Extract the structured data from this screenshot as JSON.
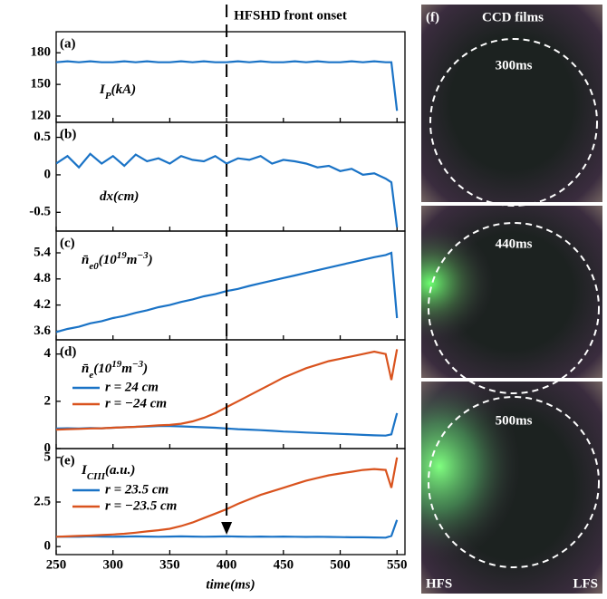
{
  "annotation": {
    "text": "HFSHD front onset",
    "x": 400
  },
  "chart_data": [
    {
      "type": "line",
      "panel": "(a)",
      "label": [
        {
          "text": "I"
        },
        {
          "text": "P",
          "sub": true
        },
        {
          "text": "(kA)"
        }
      ],
      "x": [
        250,
        260,
        270,
        280,
        290,
        300,
        310,
        320,
        330,
        340,
        350,
        360,
        370,
        380,
        390,
        400,
        410,
        420,
        430,
        440,
        450,
        460,
        470,
        480,
        490,
        500,
        510,
        520,
        530,
        540,
        545,
        550
      ],
      "values": [
        171,
        172,
        171,
        172,
        171,
        171,
        172,
        171,
        172,
        171,
        171,
        172,
        171,
        172,
        171,
        171,
        172,
        171,
        172,
        171,
        171,
        172,
        171,
        172,
        171,
        171,
        172,
        171,
        172,
        171,
        171,
        125
      ],
      "color": "#1a73c6",
      "xlim": [
        250,
        557
      ],
      "xticks": [
        250,
        300,
        350,
        400,
        450,
        500,
        550
      ],
      "ylim": [
        114,
        200
      ],
      "yticks": [
        120,
        150,
        180
      ]
    },
    {
      "type": "line",
      "panel": "(b)",
      "label": [
        {
          "text": "dx(cm)"
        }
      ],
      "x": [
        250,
        260,
        270,
        280,
        290,
        300,
        310,
        320,
        330,
        340,
        350,
        360,
        370,
        380,
        390,
        400,
        410,
        420,
        430,
        440,
        450,
        460,
        470,
        480,
        490,
        500,
        510,
        520,
        530,
        540,
        545,
        550
      ],
      "values": [
        0.15,
        0.25,
        0.1,
        0.28,
        0.15,
        0.25,
        0.12,
        0.27,
        0.18,
        0.22,
        0.15,
        0.25,
        0.2,
        0.18,
        0.25,
        0.15,
        0.22,
        0.2,
        0.25,
        0.15,
        0.2,
        0.18,
        0.15,
        0.1,
        0.12,
        0.05,
        0.08,
        0,
        0.02,
        -0.05,
        -0.1,
        -0.7
      ],
      "color": "#1a73c6",
      "xlim": [
        250,
        557
      ],
      "xticks": [
        250,
        300,
        350,
        400,
        450,
        500,
        550
      ],
      "ylim": [
        -0.75,
        0.7
      ],
      "yticks": [
        -0.5,
        0,
        0.5
      ]
    },
    {
      "type": "line",
      "panel": "(c)",
      "label": [
        {
          "text": "n̄"
        },
        {
          "text": "e0",
          "sub": true
        },
        {
          "text": "(10"
        },
        {
          "text": "19",
          "sup": true
        },
        {
          "text": "m"
        },
        {
          "text": "−3",
          "sup": true
        },
        {
          "text": ")"
        }
      ],
      "x": [
        250,
        260,
        270,
        280,
        290,
        300,
        310,
        320,
        330,
        340,
        350,
        360,
        370,
        380,
        390,
        400,
        410,
        420,
        430,
        440,
        450,
        460,
        470,
        480,
        490,
        500,
        510,
        520,
        530,
        540,
        545,
        550
      ],
      "values": [
        3.58,
        3.65,
        3.7,
        3.78,
        3.83,
        3.9,
        3.95,
        4.02,
        4.08,
        4.15,
        4.2,
        4.27,
        4.33,
        4.4,
        4.45,
        4.52,
        4.57,
        4.64,
        4.7,
        4.76,
        4.82,
        4.88,
        4.94,
        5.0,
        5.06,
        5.12,
        5.18,
        5.24,
        5.3,
        5.35,
        5.4,
        3.9
      ],
      "color": "#1a73c6",
      "xlim": [
        250,
        557
      ],
      "xticks": [
        250,
        300,
        350,
        400,
        450,
        500,
        550
      ],
      "ylim": [
        3.4,
        5.9
      ],
      "yticks": [
        3.6,
        4.2,
        4.8,
        5.4
      ]
    },
    {
      "type": "line",
      "panel": "(d)",
      "label": [
        {
          "text": "n̄"
        },
        {
          "text": "e",
          "sub": true
        },
        {
          "text": "(10"
        },
        {
          "text": "19",
          "sup": true
        },
        {
          "text": "m"
        },
        {
          "text": "−3",
          "sup": true
        },
        {
          "text": ")"
        }
      ],
      "x": [
        250,
        260,
        270,
        280,
        290,
        300,
        310,
        320,
        330,
        340,
        350,
        360,
        370,
        380,
        390,
        400,
        410,
        420,
        430,
        440,
        450,
        460,
        470,
        480,
        490,
        500,
        510,
        520,
        530,
        540,
        545,
        550
      ],
      "series": [
        {
          "name": "r = 24 cm",
          "color": "#1a73c6",
          "values": [
            0.85,
            0.86,
            0.85,
            0.87,
            0.86,
            0.88,
            0.9,
            0.92,
            0.93,
            0.95,
            0.95,
            0.94,
            0.92,
            0.9,
            0.88,
            0.85,
            0.82,
            0.8,
            0.78,
            0.75,
            0.72,
            0.7,
            0.68,
            0.66,
            0.64,
            0.62,
            0.6,
            0.58,
            0.56,
            0.55,
            0.6,
            1.5
          ]
        },
        {
          "name": "r = −24 cm",
          "color": "#d9531e",
          "values": [
            0.8,
            0.82,
            0.83,
            0.85,
            0.86,
            0.88,
            0.9,
            0.92,
            0.95,
            0.98,
            1.0,
            1.05,
            1.15,
            1.3,
            1.5,
            1.75,
            2.0,
            2.25,
            2.5,
            2.75,
            3.0,
            3.2,
            3.4,
            3.55,
            3.7,
            3.8,
            3.9,
            4.0,
            4.1,
            4.0,
            2.9,
            4.2
          ]
        }
      ],
      "xlim": [
        250,
        557
      ],
      "xticks": [
        250,
        300,
        350,
        400,
        450,
        500,
        550
      ],
      "ylim": [
        0,
        4.6
      ],
      "yticks": [
        0,
        2,
        4
      ]
    },
    {
      "type": "line",
      "panel": "(e)",
      "label": [
        {
          "text": "I"
        },
        {
          "text": "CIII",
          "sub": true
        },
        {
          "text": "(a.u.)"
        }
      ],
      "x": [
        250,
        260,
        270,
        280,
        290,
        300,
        310,
        320,
        330,
        340,
        350,
        360,
        370,
        380,
        390,
        400,
        410,
        420,
        430,
        440,
        450,
        460,
        470,
        480,
        490,
        500,
        510,
        520,
        530,
        540,
        545,
        550
      ],
      "series": [
        {
          "name": "r = 23.5 cm",
          "color": "#1a73c6",
          "values": [
            0.55,
            0.56,
            0.55,
            0.57,
            0.56,
            0.55,
            0.56,
            0.57,
            0.56,
            0.55,
            0.56,
            0.57,
            0.56,
            0.55,
            0.56,
            0.57,
            0.56,
            0.55,
            0.56,
            0.55,
            0.56,
            0.55,
            0.54,
            0.55,
            0.54,
            0.53,
            0.52,
            0.52,
            0.51,
            0.5,
            0.6,
            1.5
          ]
        },
        {
          "name": "r = −23.5 cm",
          "color": "#d9531e",
          "values": [
            0.55,
            0.57,
            0.6,
            0.62,
            0.65,
            0.68,
            0.72,
            0.78,
            0.85,
            0.92,
            1.0,
            1.15,
            1.35,
            1.6,
            1.85,
            2.1,
            2.4,
            2.65,
            2.9,
            3.1,
            3.3,
            3.5,
            3.7,
            3.85,
            4.0,
            4.1,
            4.2,
            4.3,
            4.35,
            4.3,
            3.3,
            5.0
          ]
        }
      ],
      "xlim": [
        250,
        557
      ],
      "xticks": [
        250,
        300,
        350,
        400,
        450,
        500,
        550
      ],
      "xlabel": "time(ms)",
      "ylim": [
        -0.45,
        5.5
      ],
      "yticks": [
        0,
        2.5,
        5
      ]
    }
  ],
  "ccd": {
    "panel": "(f)",
    "title": "CCD films",
    "frames": [
      "300ms",
      "440ms",
      "500ms"
    ],
    "left": "HFS",
    "right": "LFS"
  }
}
